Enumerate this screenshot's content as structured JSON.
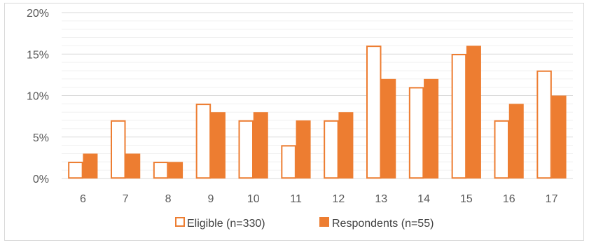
{
  "chart_data": {
    "type": "bar",
    "categories": [
      "6",
      "7",
      "8",
      "9",
      "10",
      "11",
      "12",
      "13",
      "14",
      "15",
      "16",
      "17"
    ],
    "series": [
      {
        "name": "Eligible (n=330)",
        "values": [
          2,
          7,
          2,
          9,
          7,
          4,
          7,
          16,
          11,
          15,
          7,
          13
        ],
        "style": "outline",
        "color": "#ED7D31"
      },
      {
        "name": "Respondents (n=55)",
        "values": [
          3,
          3,
          2,
          8,
          8,
          7,
          8,
          12,
          12,
          16,
          9,
          10
        ],
        "style": "filled",
        "color": "#ED7D31"
      }
    ],
    "ylim": [
      0,
      20
    ],
    "yticks": [
      "0%",
      "5%",
      "10%",
      "15%",
      "20%"
    ],
    "grid": true,
    "legend": "bottom",
    "xlabel": "",
    "ylabel": ""
  }
}
